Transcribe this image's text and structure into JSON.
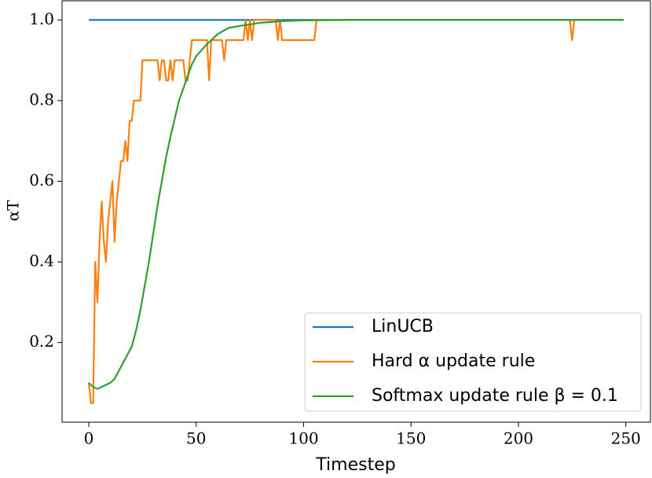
{
  "chart_data": {
    "type": "line",
    "xlabel": "Timestep",
    "ylabel": "αT",
    "xlim": [
      -12.45,
      261.45
    ],
    "ylim": [
      0.0025,
      1.0475
    ],
    "xticks": [
      0,
      50,
      100,
      150,
      200,
      250
    ],
    "yticks": [
      0.2,
      0.4,
      0.6,
      0.8,
      {
        "value": 1,
        "label": "1.0"
      }
    ],
    "legend": "lower right",
    "series": [
      {
        "name": "LinUCB",
        "color": "#1f77b4",
        "x": [
          0,
          249
        ],
        "values": [
          1,
          1
        ]
      },
      {
        "name": "Hard α update rule",
        "color": "#ff7f0e",
        "x": [
          0,
          1,
          2,
          3,
          4,
          5,
          6,
          7,
          8,
          9,
          10,
          11,
          12,
          13,
          14,
          15,
          16,
          17,
          18,
          19,
          20,
          21,
          24,
          25,
          32,
          33,
          34,
          35,
          36,
          37,
          38,
          39,
          40,
          44,
          45,
          46,
          47,
          48,
          55,
          56,
          57,
          62,
          63,
          64,
          72,
          73,
          74,
          75,
          76,
          77,
          87,
          88,
          89,
          90,
          105,
          106,
          224,
          225,
          226,
          249
        ],
        "values": [
          0.1,
          0.05,
          0.05,
          0.4,
          0.3,
          0.45,
          0.55,
          0.45,
          0.4,
          0.5,
          0.55,
          0.6,
          0.45,
          0.55,
          0.6,
          0.65,
          0.65,
          0.7,
          0.65,
          0.75,
          0.75,
          0.8,
          0.8,
          0.9,
          0.9,
          0.85,
          0.9,
          0.9,
          0.85,
          0.85,
          0.9,
          0.85,
          0.9,
          0.9,
          0.85,
          0.85,
          0.9,
          0.95,
          0.95,
          0.85,
          0.95,
          0.95,
          0.9,
          0.95,
          0.95,
          1,
          0.95,
          1,
          0.95,
          1,
          1,
          0.95,
          1,
          0.95,
          0.95,
          1,
          1,
          0.95,
          1,
          1
        ]
      },
      {
        "name": "Softmax update rule β = 0.1",
        "color": "#2ca02c",
        "x": [
          0,
          2,
          4,
          6,
          8,
          10,
          12,
          14,
          16,
          18,
          20,
          22,
          24,
          26,
          28,
          30,
          32,
          34,
          36,
          38,
          40,
          42,
          44,
          46,
          48,
          50,
          55,
          60,
          65,
          70,
          80,
          90,
          100,
          120,
          150,
          249
        ],
        "values": [
          0.1,
          0.09,
          0.085,
          0.09,
          0.095,
          0.1,
          0.11,
          0.13,
          0.15,
          0.17,
          0.19,
          0.23,
          0.28,
          0.34,
          0.4,
          0.47,
          0.54,
          0.6,
          0.66,
          0.71,
          0.755,
          0.8,
          0.83,
          0.86,
          0.89,
          0.91,
          0.94,
          0.965,
          0.98,
          0.985,
          0.993,
          0.997,
          0.999,
          1.0,
          1.0,
          1.0
        ]
      }
    ]
  }
}
